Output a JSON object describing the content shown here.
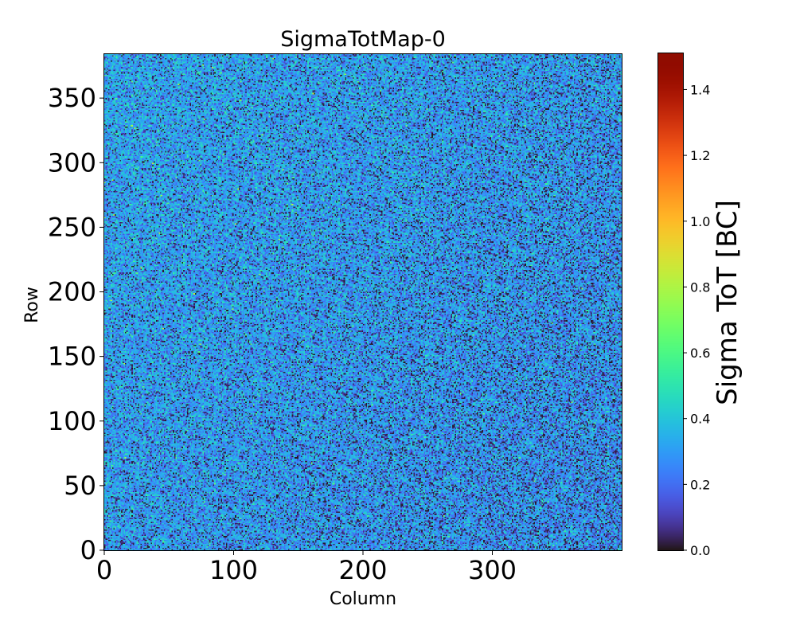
{
  "chart_data": {
    "type": "heatmap",
    "title": "SigmaTotMap-0",
    "xlabel": "Column",
    "ylabel": "Row",
    "xlim": [
      0,
      400
    ],
    "ylim": [
      0,
      384
    ],
    "x_ticks": [
      0,
      100,
      200,
      300
    ],
    "x_tick_labels": [
      "0",
      "100",
      "200",
      "300"
    ],
    "y_ticks": [
      0,
      50,
      100,
      150,
      200,
      250,
      300,
      350
    ],
    "y_tick_labels": [
      "0",
      "50",
      "100",
      "150",
      "200",
      "250",
      "300",
      "350"
    ],
    "grid_columns": 400,
    "grid_rows": 384,
    "colormap": "turbo",
    "colorbar": {
      "label": "Sigma ToT [BC]",
      "vmin": 0.0,
      "vmax": 1.51,
      "ticks": [
        0.0,
        0.2,
        0.4,
        0.6,
        0.8,
        1.0,
        1.2,
        1.4
      ],
      "tick_labels": [
        "0.0",
        "0.2",
        "0.4",
        "0.6",
        "0.8",
        "1.0",
        "1.2",
        "1.4"
      ]
    },
    "value_distribution": {
      "typical_mean": 0.3,
      "typical_spread": 0.1,
      "dead_pixel_value": 0.0,
      "notes": "Noisy per-pixel values mostly 0.2-0.45; scattered near-zero pixels, denser toward higher columns; isolated outliers near 0.8-1.0"
    }
  }
}
